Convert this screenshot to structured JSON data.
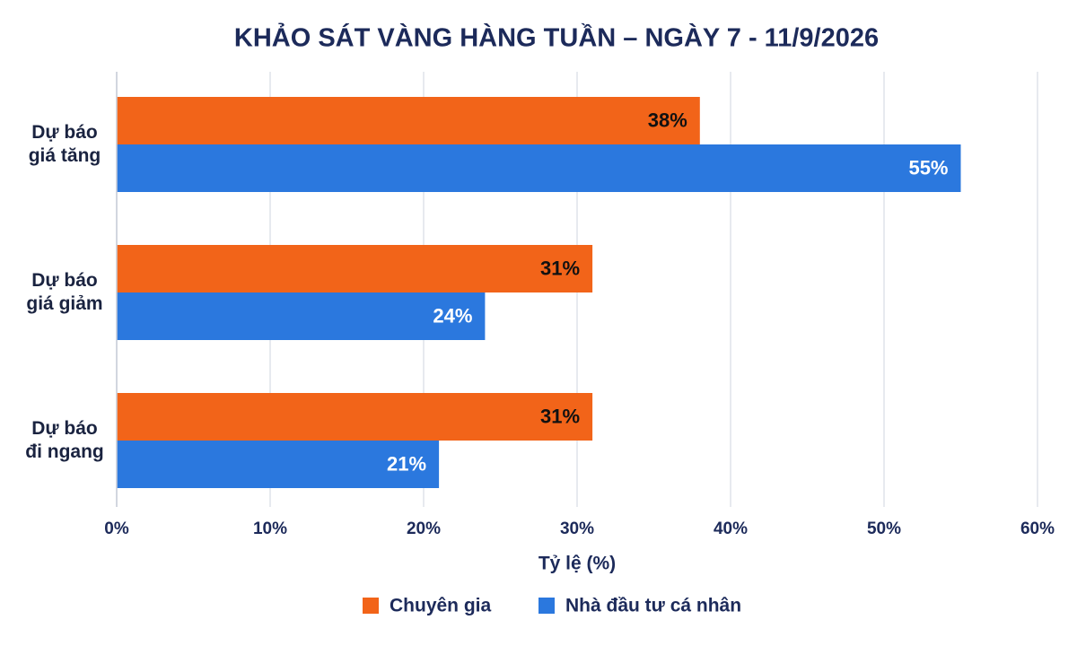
{
  "chart_data": {
    "type": "bar",
    "orientation": "horizontal",
    "title": "KHẢO SÁT VÀNG HÀNG TUẦN – NGÀY 7 - 11/9/2026",
    "categories": [
      "Dự báo\ngiá tăng",
      "Dự báo\ngiá giảm",
      "Dự báo\nđi ngang"
    ],
    "series": [
      {
        "name": "Chuyên gia",
        "color": "#f26419",
        "label_color": "#111111",
        "values": [
          38,
          31,
          31
        ],
        "value_labels": [
          "38%",
          "31%",
          "31%"
        ]
      },
      {
        "name": "Nhà đầu tư cá nhân",
        "color": "#2b78de",
        "label_color": "#ffffff",
        "values": [
          55,
          24,
          21
        ],
        "value_labels": [
          "55%",
          "24%",
          "21%"
        ]
      }
    ],
    "xlabel": "Tỷ lệ (%)",
    "xlim": [
      0,
      60
    ],
    "xticks": [
      {
        "value": 0,
        "label": "0%"
      },
      {
        "value": 10,
        "label": "10%"
      },
      {
        "value": 20,
        "label": "20%"
      },
      {
        "value": 30,
        "label": "30%"
      },
      {
        "value": 40,
        "label": "40%"
      },
      {
        "value": 50,
        "label": "50%"
      },
      {
        "value": 60,
        "label": "60%"
      }
    ],
    "grid": true,
    "legend": "bottom"
  }
}
